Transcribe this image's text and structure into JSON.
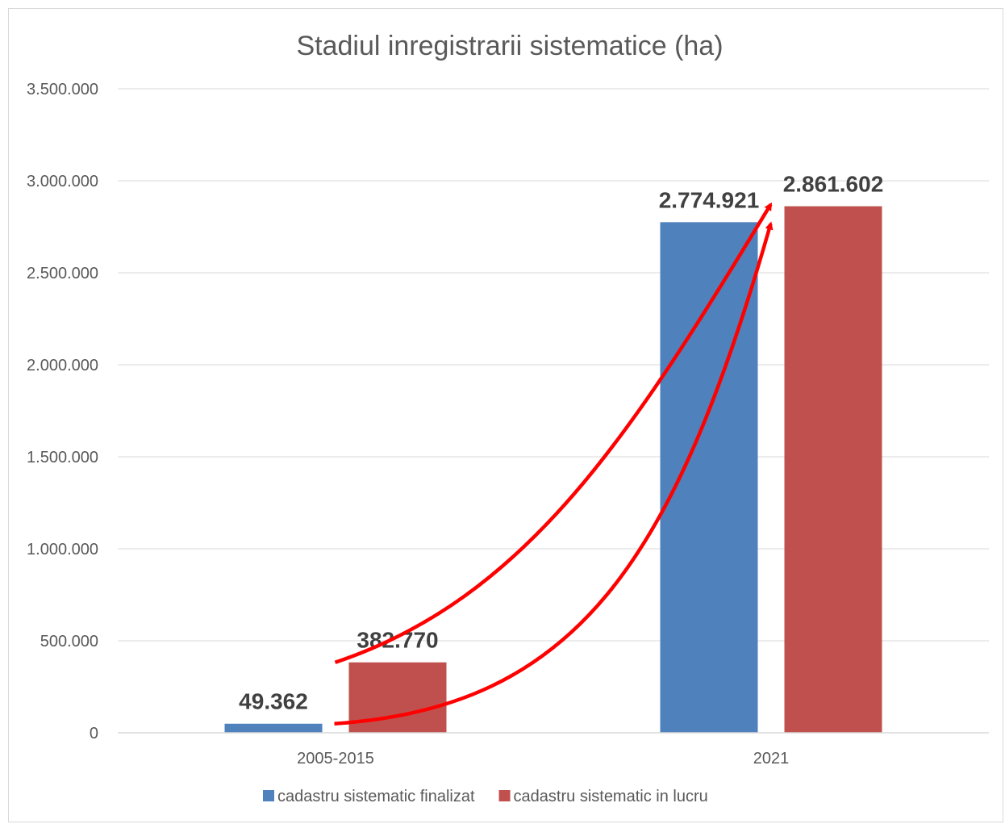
{
  "chart_data": {
    "type": "bar",
    "title": "Stadiul inregistrarii sistematice (ha)",
    "xlabel": "",
    "ylabel": "",
    "categories": [
      "2005-2015",
      "2021"
    ],
    "series": [
      {
        "name": "cadastru sistematic finalizat",
        "color": "#4f81bd",
        "values": [
          49362,
          2774921
        ],
        "labels": [
          "49.362",
          "2.774.921"
        ]
      },
      {
        "name": "cadastru sistematic in lucru",
        "color": "#c0504d",
        "values": [
          382770,
          2861602
        ],
        "labels": [
          "382.770",
          "2.861.602"
        ]
      }
    ],
    "ylim": [
      0,
      3500000
    ],
    "yticks": [
      0,
      500000,
      1000000,
      1500000,
      2000000,
      2500000,
      3000000,
      3500000
    ],
    "ytick_labels": [
      "0",
      "500.000",
      "1.000.000",
      "1.500.000",
      "2.000.000",
      "2.500.000",
      "3.000.000",
      "3.500.000"
    ],
    "grid": true,
    "legend_position": "bottom",
    "annotation_color": "#ff0000"
  }
}
